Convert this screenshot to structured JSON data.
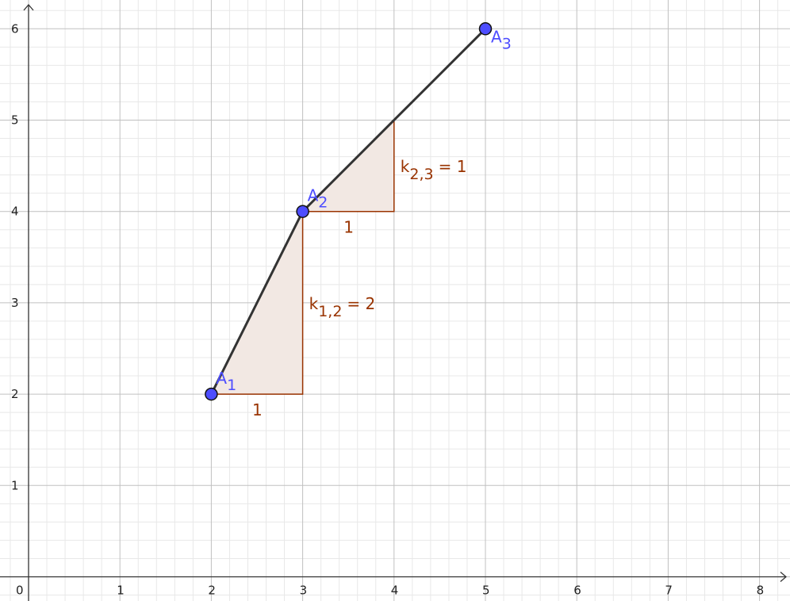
{
  "axes": {
    "x_ticks": [
      "0",
      "1",
      "2",
      "3",
      "4",
      "5",
      "6",
      "7",
      "8"
    ],
    "y_ticks": [
      "1",
      "2",
      "3",
      "4",
      "5",
      "6"
    ],
    "xlim": [
      -0.3,
      8.35
    ],
    "ylim": [
      -0.27,
      6.3
    ],
    "grid": "major 1, minor 0.2"
  },
  "points": [
    {
      "name": "A",
      "sub": "1",
      "x": 2,
      "y": 2
    },
    {
      "name": "A",
      "sub": "2",
      "x": 3,
      "y": 4
    },
    {
      "name": "A",
      "sub": "3",
      "x": 5,
      "y": 6
    }
  ],
  "slope_triangles": [
    {
      "from": [
        2,
        2
      ],
      "run": 1,
      "rise": 2,
      "run_label": "1",
      "k_label": "k",
      "k_sub": "1,2",
      "k_value": "= 2"
    },
    {
      "from": [
        3,
        4
      ],
      "run": 1,
      "rise": 1,
      "run_label": "1",
      "k_label": "k",
      "k_sub": "2,3",
      "k_value": "= 1"
    }
  ],
  "colors": {
    "point": "#4d4dff",
    "point_label": "#4d4dff",
    "segment": "#333333",
    "triangle_stroke": "#993300",
    "triangle_fill": "#f2e8e3",
    "label": "#993300"
  }
}
